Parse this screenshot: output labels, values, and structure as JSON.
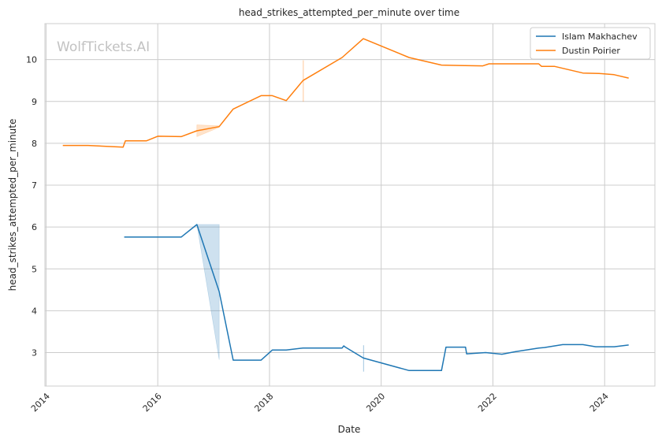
{
  "chart_data": {
    "type": "line",
    "title": "head_strikes_attempted_per_minute over time",
    "xlabel": "Date",
    "ylabel": "head_strikes_attempted_per_minute",
    "watermark": "WolfTickets.AI",
    "xlim": [
      2013.98,
      2024.9
    ],
    "ylim": [
      2.2,
      10.86
    ],
    "xticks": [
      2014,
      2016,
      2018,
      2020,
      2022,
      2024
    ],
    "xtick_labels": [
      "2014",
      "2016",
      "2018",
      "2020",
      "2022",
      "2024"
    ],
    "yticks": [
      3,
      4,
      5,
      6,
      7,
      8,
      9,
      10
    ],
    "ytick_labels": [
      "3",
      "4",
      "5",
      "6",
      "7",
      "8",
      "9",
      "10"
    ],
    "grid": true,
    "legend_position": "top-right",
    "series": [
      {
        "name": "Islam Makhachev",
        "color": "#1f77b4",
        "x": [
          2015.4,
          2016.42,
          2016.7,
          2017.1,
          2017.35,
          2017.85,
          2018.05,
          2018.3,
          2018.6,
          2019.05,
          2019.3,
          2019.33,
          2019.36,
          2019.68,
          2020.5,
          2021.08,
          2021.16,
          2021.51,
          2021.53,
          2021.87,
          2022.16,
          2022.4,
          2022.82,
          2022.92,
          2023.25,
          2023.61,
          2023.84,
          2024.17,
          2024.43
        ],
        "values": [
          5.76,
          5.76,
          6.06,
          4.46,
          2.82,
          2.82,
          3.06,
          3.06,
          3.11,
          3.11,
          3.11,
          3.16,
          3.13,
          2.87,
          2.57,
          2.57,
          3.13,
          3.13,
          2.97,
          3.0,
          2.96,
          3.02,
          3.11,
          3.12,
          3.19,
          3.19,
          3.14,
          3.14,
          3.18
        ]
      },
      {
        "name": "Dustin Poirier",
        "color": "#ff7f0e",
        "x": [
          2014.3,
          2014.75,
          2015.38,
          2015.42,
          2015.8,
          2016.0,
          2016.42,
          2016.7,
          2017.1,
          2017.35,
          2017.85,
          2018.05,
          2018.3,
          2018.6,
          2019.3,
          2019.68,
          2020.5,
          2021.08,
          2021.4,
          2021.82,
          2021.93,
          2022.4,
          2022.82,
          2022.87,
          2023.1,
          2023.61,
          2023.9,
          2024.17,
          2024.43
        ],
        "values": [
          7.95,
          7.95,
          7.91,
          8.06,
          8.06,
          8.17,
          8.16,
          8.3,
          8.4,
          8.82,
          9.14,
          9.14,
          9.02,
          9.5,
          10.05,
          10.5,
          10.05,
          9.87,
          9.86,
          9.85,
          9.9,
          9.9,
          9.9,
          9.84,
          9.84,
          9.68,
          9.67,
          9.64,
          9.56
        ]
      }
    ],
    "confidence_bands": [
      {
        "series": "Islam Makhachev",
        "color": "#1f77b4",
        "x": [
          2016.7,
          2017.1,
          2017.1,
          2016.7
        ],
        "values": [
          6.06,
          6.06,
          2.83,
          6.06
        ]
      },
      {
        "series": "Dustin Poirier",
        "color": "#ff7f0e",
        "x": [
          2016.7,
          2017.1,
          2017.1,
          2016.7
        ],
        "values": [
          8.44,
          8.42,
          8.38,
          8.16
        ]
      },
      {
        "series": "Islam Makhachev",
        "color": "#1f77b4",
        "x": [
          2019.68,
          2019.69,
          2019.69,
          2019.68
        ],
        "values": [
          3.17,
          3.17,
          2.55,
          2.55
        ]
      },
      {
        "series": "Dustin Poirier",
        "color": "#ff7f0e",
        "x": [
          2018.6,
          2018.61,
          2018.61,
          2018.6
        ],
        "values": [
          9.98,
          9.98,
          9.0,
          9.0
        ]
      }
    ]
  }
}
